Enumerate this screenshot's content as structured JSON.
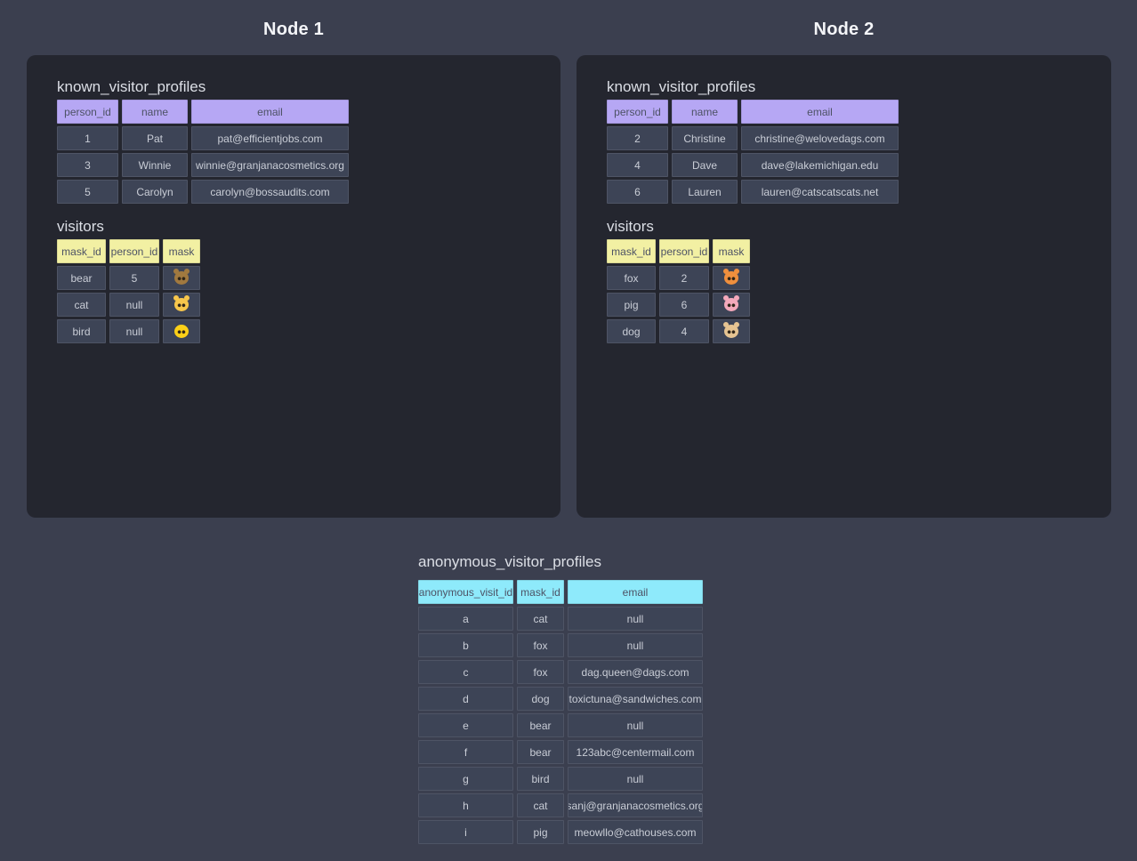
{
  "nodes": [
    {
      "title": "Node 1",
      "tables": [
        {
          "title": "known_visitor_profiles",
          "columns": [
            "person_id",
            "name",
            "email"
          ],
          "rows": [
            [
              "1",
              "Pat",
              "pat@efficientjobs.com"
            ],
            [
              "3",
              "Winnie",
              "winnie@granjanacosmetics.org"
            ],
            [
              "5",
              "Carolyn",
              "carolyn@bossaudits.com"
            ]
          ]
        },
        {
          "title": "visitors",
          "columns": [
            "mask_id",
            "person_id",
            "mask"
          ],
          "rows": [
            [
              "bear",
              "5",
              "🐻"
            ],
            [
              "cat",
              "null",
              "🐱"
            ],
            [
              "bird",
              "null",
              "🐤"
            ]
          ]
        }
      ]
    },
    {
      "title": "Node 2",
      "tables": [
        {
          "title": "known_visitor_profiles",
          "columns": [
            "person_id",
            "name",
            "email"
          ],
          "rows": [
            [
              "2",
              "Christine",
              "christine@welovedags.com"
            ],
            [
              "4",
              "Dave",
              "dave@lakemichigan.edu"
            ],
            [
              "6",
              "Lauren",
              "lauren@catscatscats.net"
            ]
          ]
        },
        {
          "title": "visitors",
          "columns": [
            "mask_id",
            "person_id",
            "mask"
          ],
          "rows": [
            [
              "fox",
              "2",
              "🦊"
            ],
            [
              "pig",
              "6",
              "🐷"
            ],
            [
              "dog",
              "4",
              "🐶"
            ]
          ]
        }
      ]
    }
  ],
  "anonymous": {
    "title": "anonymous_visitor_profiles",
    "columns": [
      "anonymous_visit_id",
      "mask_id",
      "email"
    ],
    "rows": [
      [
        "a",
        "cat",
        "null"
      ],
      [
        "b",
        "fox",
        "null"
      ],
      [
        "c",
        "fox",
        "dag.queen@dags.com"
      ],
      [
        "d",
        "dog",
        "toxictuna@sandwiches.com"
      ],
      [
        "e",
        "bear",
        "null"
      ],
      [
        "f",
        "bear",
        "123abc@centermail.com"
      ],
      [
        "g",
        "bird",
        "null"
      ],
      [
        "h",
        "cat",
        "sanj@granjanacosmetics.org"
      ],
      [
        "i",
        "pig",
        "meowllo@cathouses.com"
      ]
    ]
  },
  "colors": {
    "page_bg": "#3b3f4f",
    "panel_bg": "#24262f",
    "cell_bg": "#3d4456",
    "known_header": "#b6a7f4",
    "visitors_header": "#f2f0a3",
    "anonymous_header": "#8eeafb"
  }
}
